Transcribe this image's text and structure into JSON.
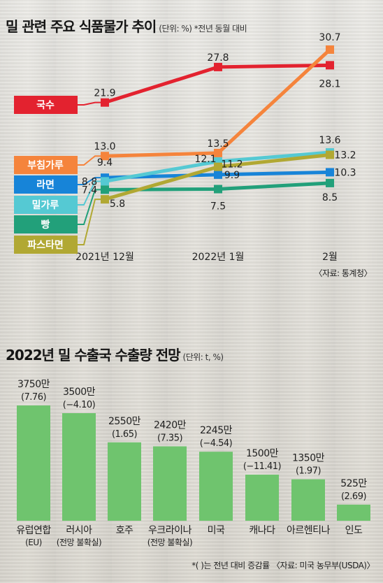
{
  "chart1": {
    "title": "밀 관련 주요 식품물가 추이",
    "note": "(단위: %) *전년 동월 대비",
    "source": "〈자료: 통계청〉",
    "chart_data": {
      "type": "line",
      "categories": [
        "2021년 12월",
        "2022년 1월",
        "2월"
      ],
      "series": [
        {
          "name": "국수",
          "values": [
            21.9,
            27.8,
            28.1
          ],
          "color": "#e3222f"
        },
        {
          "name": "부침가루",
          "values": [
            13.0,
            13.5,
            30.7
          ],
          "color": "#f5843c"
        },
        {
          "name": "라면",
          "values": [
            9.4,
            9.9,
            10.3
          ],
          "color": "#1784d8"
        },
        {
          "name": "밀가루",
          "values": [
            8.8,
            12.1,
            13.6
          ],
          "color": "#55c9d3"
        },
        {
          "name": "빵",
          "values": [
            7.4,
            7.5,
            8.5
          ],
          "color": "#22a07a"
        },
        {
          "name": "파스타면",
          "values": [
            5.8,
            11.2,
            13.2
          ],
          "color": "#b1a833"
        }
      ],
      "labels": [
        [
          "21.9",
          "27.8",
          "28.1"
        ],
        [
          "13.0",
          "13.5",
          "30.7"
        ],
        [
          "9.4",
          "9.9",
          "10.3"
        ],
        [
          "8.8",
          "12.1",
          "13.6"
        ],
        [
          "7.4",
          "7.5",
          "8.5"
        ],
        [
          "5.8",
          "11.2",
          "13.2"
        ]
      ]
    }
  },
  "chart2": {
    "title": "2022년 밀 수출국 수출량 전망",
    "note": "(단위: t, %)",
    "footnote": "*(  )는 전년 대비 증감률 〈자료: 미국 농무부(USDA)〉",
    "chart_data": {
      "type": "bar",
      "categories": [
        "유럽연합",
        "러시아",
        "호주",
        "우크라이나",
        "미국",
        "캐나다",
        "아르헨티나",
        "인도"
      ],
      "subcategories": [
        "(EU)",
        "(전망 불확실)",
        "",
        "(전망 불확실)",
        "",
        "",
        "",
        ""
      ],
      "values": [
        37500000,
        35000000,
        25500000,
        24200000,
        22450000,
        15000000,
        13500000,
        5250000
      ],
      "value_labels": [
        "3750만",
        "3500만",
        "2550만",
        "2420만",
        "2245만",
        "1500만",
        "1350만",
        "525만"
      ],
      "change_labels": [
        "(7.76)",
        "(−4.10)",
        "(1.65)",
        "(7.35)",
        "(−4.54)",
        "(−11.41)",
        "(1.97)",
        "(2.69)"
      ],
      "bar_color": "#6fc46e"
    }
  }
}
